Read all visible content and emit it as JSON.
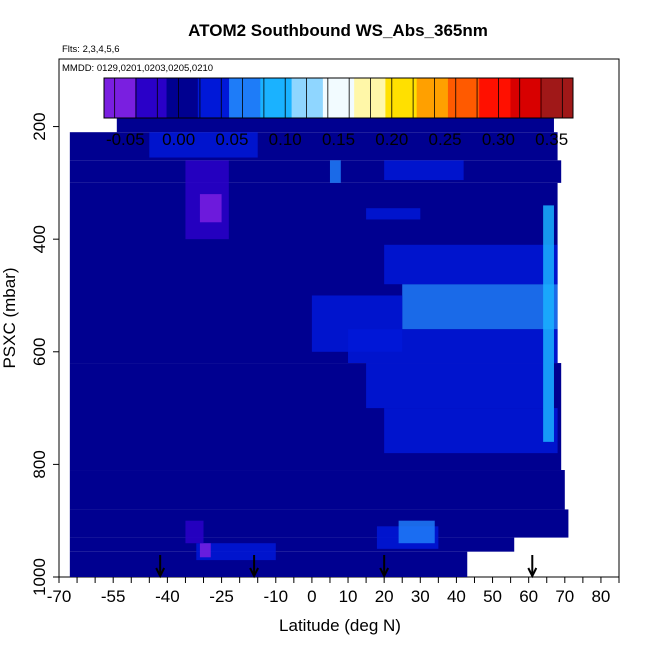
{
  "chart_data": {
    "type": "heatmap",
    "title": "ATOM2 Southbound WS_Abs_365nm",
    "subtitle_flights": "Flts: 2,3,4,5,6",
    "subtitle_dates": "MMDD: 0129,0201,0203,0205,0210",
    "xlabel": "Latitude (deg N)",
    "ylabel": "PSXC (mbar)",
    "xlim": [
      -70,
      85
    ],
    "ylim": [
      1000,
      80
    ],
    "x_ticks": [
      -70,
      -55,
      -40,
      -25,
      -10,
      0,
      10,
      20,
      30,
      40,
      50,
      60,
      70,
      80
    ],
    "x_tick_labels": [
      "-70",
      "-55",
      "-40",
      "-25",
      "-10",
      "0",
      "10",
      "20",
      "30",
      "40",
      "50",
      "60",
      "70",
      "80"
    ],
    "y_ticks": [
      1000,
      800,
      600,
      400,
      200
    ],
    "y_tick_labels": [
      "1000",
      "800",
      "600",
      "400",
      "200"
    ],
    "colorbar": {
      "min": -0.07,
      "max": 0.37,
      "ticks": [
        -0.05,
        0.0,
        0.05,
        0.1,
        0.15,
        0.2,
        0.25,
        0.3,
        0.35
      ],
      "tick_labels": [
        "-0.05",
        "0.00",
        "0.05",
        "0.10",
        "0.15",
        "0.20",
        "0.25",
        "0.30",
        "0.35"
      ],
      "colors": [
        "#7a1fe0",
        "#2a00c8",
        "#000090",
        "#0018d8",
        "#1e7cf8",
        "#1ab2ff",
        "#8fd6ff",
        "#f2fbff",
        "#fff7a8",
        "#ffe000",
        "#ffa000",
        "#ff5a00",
        "#ff1000",
        "#d80000",
        "#a01818"
      ]
    },
    "background_value": 0.0,
    "data_extent": [
      {
        "lat_min": -67,
        "lat_max": 43,
        "p_min": 955,
        "p_max": 1000
      },
      {
        "lat_min": -67,
        "lat_max": 56,
        "p_min": 930,
        "p_max": 955
      },
      {
        "lat_min": -67,
        "lat_max": 71,
        "p_min": 880,
        "p_max": 930
      },
      {
        "lat_min": -67,
        "lat_max": 70,
        "p_min": 810,
        "p_max": 880
      },
      {
        "lat_min": -67,
        "lat_max": 69,
        "p_min": 620,
        "p_max": 810
      },
      {
        "lat_min": -67,
        "lat_max": 68,
        "p_min": 300,
        "p_max": 620
      },
      {
        "lat_min": -67,
        "lat_max": 69,
        "p_min": 260,
        "p_max": 300
      },
      {
        "lat_min": -67,
        "lat_max": 68,
        "p_min": 210,
        "p_max": 260
      },
      {
        "lat_min": -54,
        "lat_max": 67,
        "p_min": 165,
        "p_max": 210
      }
    ],
    "features": [
      {
        "lat_min": 25,
        "lat_max": 68,
        "p_min": 480,
        "p_max": 560,
        "value": 0.06
      },
      {
        "lat_min": 20,
        "lat_max": 68,
        "p_min": 410,
        "p_max": 480,
        "value": 0.045
      },
      {
        "lat_min": 10,
        "lat_max": 68,
        "p_min": 560,
        "p_max": 620,
        "value": 0.045
      },
      {
        "lat_min": 15,
        "lat_max": 67,
        "p_min": 620,
        "p_max": 700,
        "value": 0.035
      },
      {
        "lat_min": 20,
        "lat_max": 68,
        "p_min": 700,
        "p_max": 780,
        "value": 0.025
      },
      {
        "lat_min": 0,
        "lat_max": 25,
        "p_min": 500,
        "p_max": 600,
        "value": 0.02
      },
      {
        "lat_min": 64,
        "lat_max": 67,
        "p_min": 340,
        "p_max": 760,
        "value": 0.08
      },
      {
        "lat_min": -35,
        "lat_max": -23,
        "p_min": 260,
        "p_max": 400,
        "value": -0.02
      },
      {
        "lat_min": -31,
        "lat_max": -25,
        "p_min": 320,
        "p_max": 370,
        "value": -0.05
      },
      {
        "lat_min": 18,
        "lat_max": 35,
        "p_min": 910,
        "p_max": 950,
        "value": 0.045
      },
      {
        "lat_min": 24,
        "lat_max": 34,
        "p_min": 900,
        "p_max": 940,
        "value": 0.055
      },
      {
        "lat_min": -32,
        "lat_max": -10,
        "p_min": 940,
        "p_max": 970,
        "value": 0.02
      },
      {
        "lat_min": -31,
        "lat_max": -28,
        "p_min": 940,
        "p_max": 965,
        "value": -0.05
      },
      {
        "lat_min": -45,
        "lat_max": -15,
        "p_min": 210,
        "p_max": 255,
        "value": 0.02
      },
      {
        "lat_min": 20,
        "lat_max": 42,
        "p_min": 260,
        "p_max": 295,
        "value": 0.045
      },
      {
        "lat_min": 15,
        "lat_max": 30,
        "p_min": 345,
        "p_max": 365,
        "value": 0.035
      },
      {
        "lat_min": 5,
        "lat_max": 8,
        "p_min": 260,
        "p_max": 300,
        "value": 0.06
      },
      {
        "lat_min": -35,
        "lat_max": -30,
        "p_min": 900,
        "p_max": 940,
        "value": -0.02
      }
    ],
    "arrows_at_latitude": [
      -42,
      -16,
      20,
      61
    ]
  }
}
